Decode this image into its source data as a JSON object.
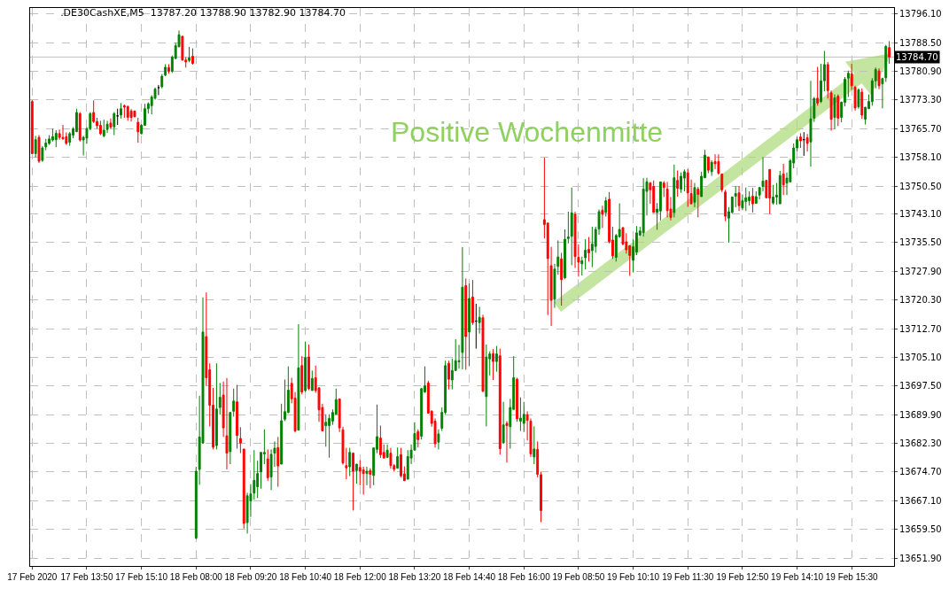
{
  "chart_data": {
    "type": "candlestick",
    "title": ".DE30CashXE,M5  13787.20 13788.90 13782.90 13784.70",
    "annotations": [
      "Positive Wochenmitte"
    ],
    "categories": [
      "17 Feb 2020",
      null,
      null,
      null,
      null,
      null,
      null,
      null,
      null,
      null,
      null,
      null,
      null,
      null,
      null,
      null,
      "17 Feb 13:50",
      null,
      null,
      null,
      null,
      null,
      null,
      null,
      null,
      null,
      null,
      null,
      null,
      null,
      null,
      null,
      "17 Feb 15:10",
      null,
      null,
      null,
      null,
      null,
      null,
      null,
      null,
      null,
      null,
      null,
      null,
      null,
      null,
      null,
      "18 Feb 08:00",
      null,
      null,
      null,
      null,
      null,
      null,
      null,
      null,
      null,
      null,
      null,
      null,
      null,
      null,
      null,
      "18 Feb 09:20",
      null,
      null,
      null,
      null,
      null,
      null,
      null,
      null,
      null,
      null,
      null,
      null,
      null,
      null,
      null,
      "18 Feb 10:40",
      null,
      null,
      null,
      null,
      null,
      null,
      null,
      null,
      null,
      null,
      null,
      null,
      null,
      null,
      null,
      "18 Feb 12:00",
      null,
      null,
      null,
      null,
      null,
      null,
      null,
      null,
      null,
      null,
      null,
      null,
      null,
      null,
      null,
      "18 Feb 13:20",
      null,
      null,
      null,
      null,
      null,
      null,
      null,
      null,
      null,
      null,
      null,
      null,
      null,
      null,
      null,
      "18 Feb 14:40",
      null,
      null,
      null,
      null,
      null,
      null,
      null,
      null,
      null,
      null,
      null,
      null,
      null,
      null,
      null,
      "18 Feb 16:00",
      null,
      null,
      null,
      null,
      null,
      null,
      null,
      null,
      null,
      null,
      null,
      null,
      null,
      null,
      null,
      "19 Feb 08:50",
      null,
      null,
      null,
      null,
      null,
      null,
      null,
      null,
      null,
      null,
      null,
      null,
      null,
      null,
      null,
      "19 Feb 10:10",
      null,
      null,
      null,
      null,
      null,
      null,
      null,
      null,
      null,
      null,
      null,
      null,
      null,
      null,
      null,
      "19 Feb 11:30",
      null,
      null,
      null,
      null,
      null,
      null,
      null,
      null,
      null,
      null,
      null,
      null,
      null,
      null,
      null,
      "19 Feb 12:50",
      null,
      null,
      null,
      null,
      null,
      null,
      null,
      null,
      null,
      null,
      null,
      null,
      null,
      null,
      null,
      "19 Feb 14:10",
      null,
      null,
      null,
      null,
      null,
      null,
      null,
      null,
      null,
      null,
      null,
      null,
      null,
      null,
      null,
      "19 Feb 15:30",
      null,
      null,
      null,
      null,
      null,
      null,
      null,
      null,
      null,
      null,
      null
    ],
    "ohlc": [
      [
        13772.9,
        13773.3,
        13759.0,
        13759.1
      ],
      [
        13759.1,
        13763.8,
        13758.1,
        13762.8
      ],
      [
        13763.4,
        13764.0,
        13756.6,
        13757.1
      ],
      [
        13757.3,
        13761.1,
        13756.9,
        13760.6
      ],
      [
        13760.9,
        13763.0,
        13760.0,
        13761.9
      ],
      [
        13761.8,
        13764.0,
        13761.4,
        13763.0
      ],
      [
        13762.7,
        13765.7,
        13762.3,
        13763.6
      ],
      [
        13762.8,
        13765.3,
        13760.8,
        13764.5
      ],
      [
        13764.4,
        13765.5,
        13762.8,
        13763.4
      ],
      [
        13763.4,
        13766.7,
        13762.8,
        13763.0
      ],
      [
        13763.6,
        13764.7,
        13761.4,
        13761.8
      ],
      [
        13762.1,
        13764.8,
        13761.2,
        13764.4
      ],
      [
        13764.0,
        13766.1,
        13763.2,
        13765.7
      ],
      [
        13764.9,
        13771.0,
        13764.8,
        13770.0
      ],
      [
        13769.7,
        13770.1,
        13762.3,
        13762.7
      ],
      [
        13762.7,
        13763.8,
        13758.6,
        13763.4
      ],
      [
        13763.2,
        13766.1,
        13761.7,
        13765.7
      ],
      [
        13765.7,
        13770.1,
        13765.3,
        13769.7
      ],
      [
        13770.0,
        13773.2,
        13767.2,
        13767.6
      ],
      [
        13767.6,
        13768.6,
        13765.7,
        13766.5
      ],
      [
        13766.6,
        13767.8,
        13764.0,
        13764.4
      ],
      [
        13763.8,
        13768.1,
        13763.4,
        13765.3
      ],
      [
        13765.5,
        13767.8,
        13764.6,
        13766.9
      ],
      [
        13767.2,
        13768.4,
        13765.7,
        13766.1
      ],
      [
        13766.2,
        13770.1,
        13764.0,
        13769.7
      ],
      [
        13769.1,
        13771.0,
        13766.7,
        13769.1
      ],
      [
        13769.3,
        13772.5,
        13768.4,
        13771.0
      ],
      [
        13771.8,
        13772.1,
        13768.6,
        13771.4
      ],
      [
        13771.6,
        13771.8,
        13767.8,
        13768.7
      ],
      [
        13770.4,
        13770.9,
        13767.6,
        13768.7
      ],
      [
        13770.4,
        13770.4,
        13768.7,
        13768.9
      ],
      [
        13767.4,
        13768.6,
        13762.0,
        13764.9
      ],
      [
        13764.4,
        13766.9,
        13764.2,
        13766.6
      ],
      [
        13766.6,
        13772.3,
        13766.5,
        13771.0
      ],
      [
        13771.0,
        13772.7,
        13769.7,
        13772.3
      ],
      [
        13771.8,
        13774.6,
        13769.5,
        13774.1
      ],
      [
        13773.8,
        13776.6,
        13773.4,
        13776.2
      ],
      [
        13776.6,
        13777.3,
        13774.6,
        13776.6
      ],
      [
        13776.8,
        13780.2,
        13776.4,
        13779.6
      ],
      [
        13779.9,
        13782.8,
        13779.6,
        13782.0
      ],
      [
        13781.9,
        13782.8,
        13780.3,
        13780.9
      ],
      [
        13780.9,
        13785.1,
        13780.5,
        13784.7
      ],
      [
        13784.3,
        13788.5,
        13784.2,
        13787.7
      ],
      [
        13787.4,
        13791.7,
        13787.3,
        13790.6
      ],
      [
        13790.2,
        13790.3,
        13783.7,
        13783.9
      ],
      [
        13783.9,
        13784.7,
        13781.9,
        13783.4
      ],
      [
        13783.8,
        13787.4,
        13783.3,
        13784.5
      ],
      [
        13784.9,
        13787.0,
        13782.7,
        13783.0
      ],
      [
        13657.2,
        13676.1,
        13656.9,
        13674.9
      ],
      [
        13675.4,
        13694.9,
        13671.3,
        13684.0
      ],
      [
        13682.4,
        13721.0,
        13682.2,
        13711.8
      ],
      [
        13710.6,
        13722.3,
        13697.6,
        13699.7
      ],
      [
        13701.8,
        13703.5,
        13686.8,
        13692.4
      ],
      [
        13692.4,
        13697.0,
        13680.7,
        13681.3
      ],
      [
        13681.7,
        13703.5,
        13680.7,
        13691.4
      ],
      [
        13691.8,
        13698.3,
        13689.9,
        13694.5
      ],
      [
        13695.1,
        13698.7,
        13684.0,
        13686.4
      ],
      [
        13684.3,
        13699.6,
        13675.4,
        13679.7
      ],
      [
        13680.1,
        13690.5,
        13676.8,
        13690.5
      ],
      [
        13690.8,
        13696.8,
        13689.4,
        13693.5
      ],
      [
        13693.3,
        13697.8,
        13680.9,
        13684.4
      ],
      [
        13683.6,
        13686.6,
        13679.7,
        13682.4
      ],
      [
        13680.8,
        13680.8,
        13659.7,
        13661.1
      ],
      [
        13661.3,
        13669.2,
        13658.4,
        13668.4
      ],
      [
        13667.0,
        13671.5,
        13662.8,
        13668.9
      ],
      [
        13669.1,
        13680.5,
        13667.4,
        13672.5
      ],
      [
        13670.8,
        13677.7,
        13667.8,
        13674.3
      ],
      [
        13674.7,
        13679.9,
        13670.3,
        13679.9
      ],
      [
        13679.5,
        13686.0,
        13676.8,
        13679.9
      ],
      [
        13678.2,
        13680.7,
        13672.4,
        13673.2
      ],
      [
        13673.4,
        13680.7,
        13669.9,
        13679.4
      ],
      [
        13679.7,
        13682.8,
        13676.1,
        13681.0
      ],
      [
        13681.2,
        13684.0,
        13670.8,
        13676.3
      ],
      [
        13676.8,
        13692.8,
        13676.8,
        13688.3
      ],
      [
        13688.7,
        13699.2,
        13688.2,
        13690.7
      ],
      [
        13690.5,
        13702.7,
        13690.3,
        13696.4
      ],
      [
        13698.2,
        13699.7,
        13692.9,
        13694.1
      ],
      [
        13694.3,
        13695.9,
        13685.2,
        13685.6
      ],
      [
        13685.8,
        13713.9,
        13685.8,
        13702.3
      ],
      [
        13702.9,
        13705.4,
        13695.3,
        13695.9
      ],
      [
        13696.3,
        13709.3,
        13695.9,
        13705.0
      ],
      [
        13705.2,
        13708.5,
        13696.4,
        13696.8
      ],
      [
        13696.3,
        13701.6,
        13696.3,
        13699.5
      ],
      [
        13699.7,
        13702.9,
        13695.7,
        13696.3
      ],
      [
        13697.0,
        13697.2,
        13688.0,
        13691.2
      ],
      [
        13691.8,
        13692.8,
        13685.6,
        13685.6
      ],
      [
        13687.0,
        13690.0,
        13681.4,
        13687.9
      ],
      [
        13687.0,
        13690.0,
        13678.5,
        13688.9
      ],
      [
        13688.2,
        13691.3,
        13687.2,
        13690.5
      ],
      [
        13690.0,
        13696.8,
        13690.0,
        13693.9
      ],
      [
        13694.1,
        13694.1,
        13685.3,
        13686.4
      ],
      [
        13685.9,
        13686.7,
        13676.7,
        13677.1
      ],
      [
        13676.4,
        13681.1,
        13672.8,
        13675.8
      ],
      [
        13676.1,
        13681.1,
        13673.6,
        13679.9
      ],
      [
        13679.7,
        13679.9,
        13664.5,
        13674.9
      ],
      [
        13675.1,
        13676.8,
        13671.6,
        13676.8
      ],
      [
        13675.9,
        13677.8,
        13671.2,
        13674.9
      ],
      [
        13675.3,
        13676.1,
        13668.7,
        13674.3
      ],
      [
        13674.3,
        13676.1,
        13671.2,
        13674.9
      ],
      [
        13675.1,
        13675.7,
        13670.4,
        13674.1
      ],
      [
        13673.8,
        13681.1,
        13671.2,
        13681.1
      ],
      [
        13680.7,
        13692.6,
        13679.7,
        13684.1
      ],
      [
        13683.7,
        13687.0,
        13678.4,
        13679.3
      ],
      [
        13679.9,
        13682.0,
        13678.4,
        13678.4
      ],
      [
        13678.6,
        13682.0,
        13678.4,
        13680.5
      ],
      [
        13679.7,
        13681.1,
        13675.6,
        13676.4
      ],
      [
        13676.4,
        13676.8,
        13674.8,
        13675.4
      ],
      [
        13675.7,
        13681.2,
        13675.7,
        13678.8
      ],
      [
        13679.3,
        13681.1,
        13673.3,
        13673.7
      ],
      [
        13674.2,
        13676.2,
        13672.4,
        13672.4
      ],
      [
        13672.8,
        13680.5,
        13672.8,
        13678.8
      ],
      [
        13678.4,
        13682.0,
        13676.8,
        13680.5
      ],
      [
        13680.5,
        13687.9,
        13680.5,
        13684.9
      ],
      [
        13685.4,
        13686.0,
        13681.2,
        13683.3
      ],
      [
        13684.2,
        13697.0,
        13683.3,
        13696.8
      ],
      [
        13695.9,
        13702.7,
        13695.7,
        13697.6
      ],
      [
        13698.3,
        13698.9,
        13690.3,
        13690.3
      ],
      [
        13690.8,
        13691.1,
        13686.7,
        13687.6
      ],
      [
        13688.2,
        13688.9,
        13681.2,
        13682.2
      ],
      [
        13682.6,
        13686.0,
        13680.7,
        13684.8
      ],
      [
        13686.3,
        13691.8,
        13685.6,
        13690.5
      ],
      [
        13690.5,
        13704.2,
        13690.0,
        13702.9
      ],
      [
        13703.5,
        13704.2,
        13696.6,
        13699.3
      ],
      [
        13699.1,
        13704.8,
        13696.6,
        13701.6
      ],
      [
        13701.6,
        13709.9,
        13701.6,
        13704.2
      ],
      [
        13703.9,
        13708.4,
        13702.1,
        13704.2
      ],
      [
        13706.4,
        13734.3,
        13701.9,
        13723.7
      ],
      [
        13724.1,
        13726.0,
        13701.8,
        13710.6
      ],
      [
        13711.8,
        13724.7,
        13702.8,
        13720.7
      ],
      [
        13721.1,
        13725.6,
        13713.7,
        13714.3
      ],
      [
        13714.7,
        13719.3,
        13707.4,
        13714.7
      ],
      [
        13714.3,
        13718.5,
        13711.4,
        13715.7
      ],
      [
        13715.6,
        13716.4,
        13695.9,
        13696.1
      ],
      [
        13694.7,
        13708.5,
        13686.8,
        13705.2
      ],
      [
        13704.7,
        13706.7,
        13700.3,
        13706.0
      ],
      [
        13706.1,
        13707.3,
        13699.1,
        13704.0
      ],
      [
        13704.0,
        13708.1,
        13701.3,
        13706.0
      ],
      [
        13705.5,
        13707.4,
        13679.3,
        13680.9
      ],
      [
        13682.4,
        13693.3,
        13682.4,
        13687.2
      ],
      [
        13687.6,
        13688.2,
        13677.2,
        13687.0
      ],
      [
        13686.7,
        13694.1,
        13680.9,
        13691.8
      ],
      [
        13691.3,
        13705.4,
        13691.3,
        13699.7
      ],
      [
        13699.3,
        13699.7,
        13688.0,
        13688.8
      ],
      [
        13688.2,
        13694.5,
        13685.6,
        13689.0
      ],
      [
        13687.6,
        13693.3,
        13685.3,
        13690.0
      ],
      [
        13689.9,
        13690.8,
        13683.1,
        13688.4
      ],
      [
        13688.2,
        13688.9,
        13678.7,
        13679.5
      ],
      [
        13678.7,
        13686.8,
        13676.8,
        13680.8
      ],
      [
        13680.7,
        13682.8,
        13673.3,
        13674.1
      ],
      [
        13674.0,
        13674.7,
        13661.4,
        13664.5
      ],
      [
        13741.6,
        13758.0,
        13736.6,
        13740.3
      ],
      [
        13740.7,
        13740.7,
        13716.3,
        13731.3
      ],
      [
        13729.4,
        13734.4,
        13713.4,
        13720.2
      ],
      [
        13720.5,
        13729.9,
        13718.2,
        13728.5
      ],
      [
        13729.2,
        13736.1,
        13727.0,
        13731.7
      ],
      [
        13731.2,
        13732.8,
        13718.8,
        13725.7
      ],
      [
        13726.2,
        13739.0,
        13725.8,
        13736.4
      ],
      [
        13736.6,
        13743.7,
        13735.3,
        13737.0
      ],
      [
        13737.2,
        13750.1,
        13729.5,
        13743.4
      ],
      [
        13743.0,
        13743.7,
        13728.8,
        13731.8
      ],
      [
        13731.6,
        13735.1,
        13726.5,
        13730.3
      ],
      [
        13729.9,
        13731.8,
        13726.8,
        13730.7
      ],
      [
        13731.5,
        13736.4,
        13728.4,
        13733.5
      ],
      [
        13733.7,
        13737.0,
        13730.5,
        13732.8
      ],
      [
        13733.4,
        13739.7,
        13729.0,
        13735.1
      ],
      [
        13734.5,
        13739.7,
        13732.8,
        13739.0
      ],
      [
        13739.1,
        13744.3,
        13737.6,
        13743.7
      ],
      [
        13744.1,
        13745.3,
        13739.4,
        13743.0
      ],
      [
        13743.5,
        13747.6,
        13742.4,
        13746.6
      ],
      [
        13747.0,
        13748.9,
        13735.3,
        13735.8
      ],
      [
        13736.2,
        13739.7,
        13731.2,
        13732.0
      ],
      [
        13731.6,
        13737.8,
        13730.5,
        13737.4
      ],
      [
        13737.1,
        13745.9,
        13736.8,
        13739.0
      ],
      [
        13739.5,
        13739.5,
        13734.8,
        13735.1
      ],
      [
        13735.7,
        13738.0,
        13732.6,
        13733.6
      ],
      [
        13734.7,
        13734.7,
        13726.7,
        13732.1
      ],
      [
        13730.8,
        13736.4,
        13727.6,
        13734.4
      ],
      [
        13733.0,
        13739.9,
        13732.2,
        13738.1
      ],
      [
        13737.5,
        13739.7,
        13737.2,
        13738.6
      ],
      [
        13738.1,
        13752.6,
        13737.1,
        13749.7
      ],
      [
        13749.1,
        13752.7,
        13742.7,
        13751.6
      ],
      [
        13751.3,
        13751.6,
        13745.8,
        13749.5
      ],
      [
        13750.4,
        13752.0,
        13743.4,
        13743.5
      ],
      [
        13743.5,
        13746.0,
        13738.9,
        13744.4
      ],
      [
        13743.9,
        13751.6,
        13741.4,
        13751.6
      ],
      [
        13751.3,
        13751.8,
        13747.6,
        13750.1
      ],
      [
        13749.7,
        13751.6,
        13742.2,
        13744.0
      ],
      [
        13744.4,
        13747.6,
        13741.4,
        13742.2
      ],
      [
        13743.5,
        13756.2,
        13742.2,
        13752.7
      ],
      [
        13752.0,
        13754.6,
        13747.7,
        13749.9
      ],
      [
        13749.7,
        13754.1,
        13748.7,
        13753.1
      ],
      [
        13752.6,
        13754.9,
        13749.1,
        13754.3
      ],
      [
        13754.0,
        13755.0,
        13745.0,
        13748.7
      ],
      [
        13748.5,
        13752.2,
        13745.7,
        13745.8
      ],
      [
        13746.2,
        13751.3,
        13744.9,
        13750.1
      ],
      [
        13749.7,
        13750.3,
        13742.2,
        13748.3
      ],
      [
        13747.7,
        13754.3,
        13747.7,
        13753.1
      ],
      [
        13752.7,
        13760.1,
        13752.6,
        13758.7
      ],
      [
        13758.2,
        13758.3,
        13753.9,
        13754.7
      ],
      [
        13754.3,
        13757.3,
        13753.2,
        13756.8
      ],
      [
        13757.0,
        13758.9,
        13755.0,
        13756.4
      ],
      [
        13757.0,
        13758.9,
        13753.5,
        13753.9
      ],
      [
        13753.7,
        13753.7,
        13748.9,
        13749.5
      ],
      [
        13748.9,
        13749.5,
        13741.2,
        13742.5
      ],
      [
        13742.0,
        13744.9,
        13735.5,
        13743.7
      ],
      [
        13743.5,
        13747.6,
        13743.3,
        13747.6
      ],
      [
        13747.8,
        13750.5,
        13744.9,
        13748.5
      ],
      [
        13748.7,
        13750.5,
        13743.9,
        13745.3
      ],
      [
        13744.7,
        13748.3,
        13744.1,
        13746.6
      ],
      [
        13746.4,
        13750.1,
        13743.9,
        13747.4
      ],
      [
        13746.6,
        13749.1,
        13745.3,
        13747.6
      ],
      [
        13747.8,
        13750.0,
        13743.5,
        13745.8
      ],
      [
        13745.9,
        13749.1,
        13745.9,
        13747.7
      ],
      [
        13748.1,
        13750.3,
        13747.0,
        13750.1
      ],
      [
        13750.4,
        13758.2,
        13749.1,
        13751.8
      ],
      [
        13752.0,
        13752.0,
        13747.3,
        13747.4
      ],
      [
        13754.9,
        13754.9,
        13743.1,
        13747.3
      ],
      [
        13746.0,
        13750.8,
        13745.6,
        13747.6
      ],
      [
        13747.6,
        13751.3,
        13745.6,
        13748.1
      ],
      [
        13745.8,
        13754.5,
        13745.8,
        13753.3
      ],
      [
        13753.7,
        13756.4,
        13748.1,
        13750.8
      ],
      [
        13751.3,
        13754.1,
        13748.1,
        13752.6
      ],
      [
        13751.6,
        13757.7,
        13751.6,
        13757.2
      ],
      [
        13756.6,
        13761.8,
        13755.2,
        13760.6
      ],
      [
        13760.6,
        13763.5,
        13759.7,
        13762.8
      ],
      [
        13763.5,
        13764.5,
        13760.6,
        13762.5
      ],
      [
        13762.8,
        13764.8,
        13758.5,
        13762.8
      ],
      [
        13763.3,
        13764.3,
        13759.7,
        13761.8
      ],
      [
        13762.2,
        13778.4,
        13755.6,
        13768.3
      ],
      [
        13768.5,
        13774.1,
        13767.5,
        13773.7
      ],
      [
        13773.8,
        13782.1,
        13771.8,
        13772.5
      ],
      [
        13772.9,
        13782.9,
        13772.5,
        13778.4
      ],
      [
        13778.4,
        13786.3,
        13775.6,
        13782.7
      ],
      [
        13782.7,
        13783.4,
        13773.7,
        13775.8
      ],
      [
        13775.2,
        13775.8,
        13765.2,
        13768.2
      ],
      [
        13768.7,
        13774.8,
        13765.6,
        13773.9
      ],
      [
        13774.3,
        13774.8,
        13766.4,
        13768.5
      ],
      [
        13768.7,
        13772.9,
        13767.4,
        13772.7
      ],
      [
        13772.7,
        13779.4,
        13771.6,
        13778.8
      ],
      [
        13779.1,
        13781.1,
        13774.1,
        13780.4
      ],
      [
        13780.2,
        13782.9,
        13776.0,
        13777.1
      ],
      [
        13776.7,
        13777.1,
        13770.5,
        13771.2
      ],
      [
        13771.5,
        13776.4,
        13771.0,
        13776.0
      ],
      [
        13775.4,
        13776.4,
        13768.3,
        13769.3
      ],
      [
        13768.2,
        13771.4,
        13766.8,
        13771.4
      ],
      [
        13771.0,
        13774.8,
        13771.0,
        13772.9
      ],
      [
        13772.9,
        13779.1,
        13771.8,
        13778.4
      ],
      [
        13778.4,
        13781.9,
        13776.4,
        13781.4
      ],
      [
        13781.0,
        13781.7,
        13776.2,
        13777.1
      ],
      [
        13777.6,
        13779.2,
        13771.1,
        13779.0
      ],
      [
        13779.2,
        13787.9,
        13778.1,
        13787.5
      ],
      [
        13787.2,
        13788.9,
        13782.9,
        13784.7
      ]
    ],
    "colors": [
      "#ff0000",
      "#008000",
      "#ff0000",
      "#008000",
      "#008000",
      "#008000",
      "#008000",
      "#008000",
      "#ff0000",
      "#ff0000",
      "#ff0000",
      "#008000",
      "#008000",
      "#008000",
      "#ff0000",
      "#008000",
      "#008000",
      "#008000",
      "#ff0000",
      "#ff0000",
      "#ff0000",
      "#008000",
      "#008000",
      "#ff0000",
      "#008000",
      "#000000",
      "#008000",
      "#ff0000",
      "#ff0000",
      "#ff0000",
      "#ff0000",
      "#ff0000",
      "#008000",
      "#008000",
      "#008000",
      "#008000",
      "#008000",
      "#000000",
      "#008000",
      "#008000",
      "#ff0000",
      "#008000",
      "#008000",
      "#008000",
      "#ff0000",
      "#ff0000",
      "#008000",
      "#ff0000",
      "#008000",
      "#008000",
      "#008000",
      "#ff0000",
      "#ff0000",
      "#ff0000",
      "#008000",
      "#008000",
      "#ff0000",
      "#ff0000",
      "#008000",
      "#008000",
      "#ff0000",
      "#ff0000",
      "#ff0000",
      "#008000",
      "#008000",
      "#008000",
      "#008000",
      "#008000",
      "#008000",
      "#ff0000",
      "#008000",
      "#008000",
      "#ff0000",
      "#008000",
      "#008000",
      "#008000",
      "#ff0000",
      "#ff0000",
      "#008000",
      "#ff0000",
      "#008000",
      "#ff0000",
      "#008000",
      "#ff0000",
      "#ff0000",
      "#ff0000",
      "#008000",
      "#008000",
      "#008000",
      "#008000",
      "#ff0000",
      "#ff0000",
      "#ff0000",
      "#008000",
      "#ff0000",
      "#008000",
      "#ff0000",
      "#ff0000",
      "#008000",
      "#ff0000",
      "#008000",
      "#008000",
      "#ff0000",
      "#ff0000",
      "#008000",
      "#ff0000",
      "#ff0000",
      "#008000",
      "#ff0000",
      "#ff0000",
      "#008000",
      "#008000",
      "#008000",
      "#ff0000",
      "#008000",
      "#008000",
      "#ff0000",
      "#ff0000",
      "#ff0000",
      "#008000",
      "#008000",
      "#008000",
      "#ff0000",
      "#008000",
      "#008000",
      "#008000",
      "#008000",
      "#ff0000",
      "#008000",
      "#ff0000",
      "#000000",
      "#008000",
      "#ff0000",
      "#008000",
      "#008000",
      "#ff0000",
      "#008000",
      "#ff0000",
      "#008000",
      "#ff0000",
      "#008000",
      "#008000",
      "#ff0000",
      "#008000",
      "#008000",
      "#ff0000",
      "#ff0000",
      "#008000",
      "#ff0000",
      "#ff0000",
      "#ff0000",
      "#ff0000",
      "#ff0000",
      "#008000",
      "#008000",
      "#ff0000",
      "#008000",
      "#008000",
      "#008000",
      "#ff0000",
      "#ff0000",
      "#008000",
      "#008000",
      "#ff0000",
      "#008000",
      "#008000",
      "#008000",
      "#ff0000",
      "#008000",
      "#ff0000",
      "#ff0000",
      "#008000",
      "#008000",
      "#ff0000",
      "#ff0000",
      "#ff0000",
      "#008000",
      "#008000",
      "#008000",
      "#008000",
      "#008000",
      "#ff0000",
      "#ff0000",
      "#008000",
      "#008000",
      "#ff0000",
      "#ff0000",
      "#ff0000",
      "#008000",
      "#ff0000",
      "#008000",
      "#008000",
      "#ff0000",
      "#ff0000",
      "#008000",
      "#ff0000",
      "#008000",
      "#008000",
      "#ff0000",
      "#008000",
      "#ff0000",
      "#ff0000",
      "#ff0000",
      "#ff0000",
      "#008000",
      "#008000",
      "#008000",
      "#ff0000",
      "#008000",
      "#008000",
      "#008000",
      "#ff0000",
      "#008000",
      "#008000",
      "#008000",
      "#ff0000",
      "#ff0000",
      "#008000",
      "#008000",
      "#008000",
      "#ff0000",
      "#008000",
      "#008000",
      "#008000",
      "#008000",
      "#ff0000",
      "#000000",
      "#ff0000",
      "#008000",
      "#008000",
      "#ff0000",
      "#008000",
      "#008000",
      "#ff0000",
      "#ff0000",
      "#008000",
      "#ff0000",
      "#008000",
      "#008000",
      "#008000",
      "#ff0000",
      "#ff0000",
      "#008000",
      "#ff0000",
      "#008000",
      "#008000",
      "#008000",
      "#008000",
      "#ff0000",
      "#008000",
      "#008000",
      "#ff0000"
    ],
    "ylim": [
      13649.8,
      13797.7
    ],
    "yticks": [
      {
        "value": 13651.9,
        "label": "13651.90"
      },
      {
        "value": 13659.5,
        "label": "13659.50"
      },
      {
        "value": 13667.1,
        "label": "13667.10"
      },
      {
        "value": 13674.7,
        "label": "13674.70"
      },
      {
        "value": 13682.3,
        "label": "13682.30"
      },
      {
        "value": 13689.9,
        "label": "13689.90"
      },
      {
        "value": 13697.5,
        "label": "13697.50"
      },
      {
        "value": 13705.1,
        "label": "13705.10"
      },
      {
        "value": 13712.7,
        "label": "13712.70"
      },
      {
        "value": 13720.3,
        "label": "13720.30"
      },
      {
        "value": 13727.9,
        "label": "13727.90"
      },
      {
        "value": 13735.5,
        "label": "13735.50"
      },
      {
        "value": 13743.1,
        "label": "13743.10"
      },
      {
        "value": 13750.5,
        "label": "13750.50"
      },
      {
        "value": 13758.1,
        "label": "13758.10"
      },
      {
        "value": 13765.7,
        "label": "13765.70"
      },
      {
        "value": 13773.3,
        "label": "13773.30"
      },
      {
        "value": 13780.9,
        "label": "13780.90"
      },
      {
        "value": 13788.5,
        "label": "13788.50"
      },
      {
        "value": 13796.1,
        "label": "13796.10"
      }
    ],
    "ref_lines": [
      {
        "axis": "y",
        "value": 13784.7,
        "label": "13784.70",
        "color": "#c0c0c0"
      }
    ],
    "grid": true
  }
}
